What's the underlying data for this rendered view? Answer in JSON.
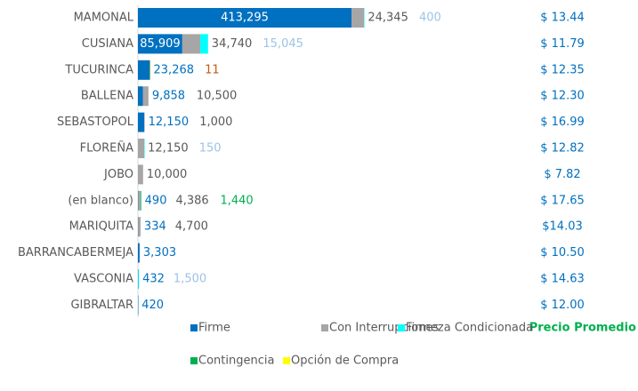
{
  "chart_data": {
    "type": "bar",
    "orientation": "horizontal",
    "stacked": true,
    "categories": [
      "MAMONAL",
      "CUSIANA",
      "TUCURINCA",
      "BALLENA",
      "SEBASTOPOL",
      "FLOREÑA",
      "JOBO",
      "(en blanco)",
      "MARIQUITA",
      "BARRANCABERMEJA",
      "VASCONIA",
      "GIBRALTAR"
    ],
    "series": [
      {
        "name": "Firme",
        "color": "#0070c0",
        "label_color": "#0070c0",
        "values": [
          413295,
          85909,
          23268,
          9858,
          12150,
          null,
          null,
          490,
          334,
          3303,
          432,
          420
        ],
        "value_labels": [
          "413,295",
          "85,909",
          "23,268",
          "9,858",
          "12,150",
          null,
          null,
          "490",
          "334",
          "3,303",
          "432",
          "420"
        ]
      },
      {
        "name": "Con Interrupciones",
        "color": "#a6a6a6",
        "label_color": "#595959",
        "values": [
          24345,
          34740,
          null,
          10500,
          1000,
          12150,
          10000,
          4386,
          4700,
          null,
          null,
          null
        ],
        "value_labels": [
          "24,345",
          "34,740",
          null,
          "10,500",
          "1,000",
          "12,150",
          "10,000",
          "4,386",
          "4,700",
          null,
          null,
          null
        ]
      },
      {
        "name": "Firmeza Condicionada",
        "color": "#00ffff",
        "label_color": "#9dc3e6",
        "values": [
          400,
          15045,
          null,
          null,
          null,
          150,
          null,
          null,
          null,
          null,
          1500,
          null
        ],
        "value_labels": [
          "400",
          "15,045",
          null,
          null,
          null,
          "150",
          null,
          null,
          null,
          null,
          "1,500",
          null
        ]
      },
      {
        "name": "Contingencia",
        "color": "#00b050",
        "label_color": "#00b050",
        "values": [
          null,
          null,
          null,
          null,
          null,
          null,
          null,
          1440,
          null,
          null,
          null,
          null
        ],
        "value_labels": [
          null,
          null,
          null,
          null,
          null,
          null,
          null,
          "1,440",
          null,
          null,
          null,
          null
        ]
      },
      {
        "name": "Opción de Compra",
        "color": "#ffff00",
        "label_color": "#c55a11",
        "values": [
          null,
          null,
          11,
          null,
          null,
          null,
          null,
          null,
          null,
          null,
          null,
          null
        ]
      }
    ],
    "price_header": "Precio Promedio",
    "prices": [
      13.44,
      11.79,
      12.35,
      12.3,
      16.99,
      12.82,
      7.82,
      17.65,
      14.03,
      10.5,
      14.63,
      12.0
    ],
    "price_labels": [
      "$ 13.44",
      "$ 11.79",
      "$ 12.35",
      "$ 12.30",
      "$ 16.99",
      "$ 12.82",
      "$ 7.82",
      "$ 17.65",
      "$14.03",
      "$ 10.50",
      "$ 14.63",
      "$ 12.00"
    ]
  }
}
